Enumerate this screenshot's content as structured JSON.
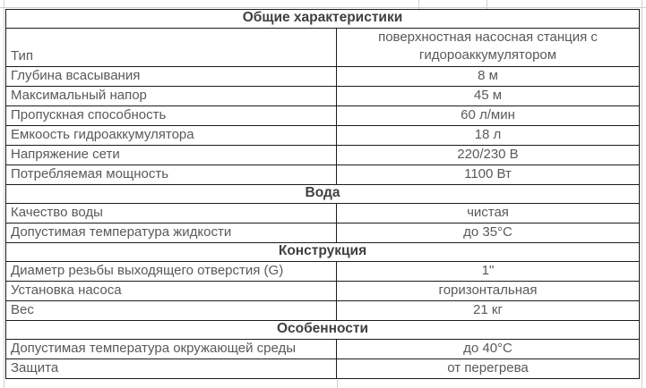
{
  "spec_table": {
    "sections": [
      {
        "header": "Общие характеристики",
        "rows": [
          {
            "label": "Тип",
            "value": "поверхностная насосная станция с гидороаккумулятором",
            "tall": true
          },
          {
            "label": "Глубина всасывания",
            "value": "8 м"
          },
          {
            "label": "Максимальный напор",
            "value": "45 м"
          },
          {
            "label": "Пропускная способность",
            "value": "60 л/мин"
          },
          {
            "label": "Емкоость гидроаккумулятора",
            "value": "18 л"
          },
          {
            "label": "Напряжение сети",
            "value": "220/230 В"
          },
          {
            "label": "Потребляемая мощность",
            "value": "1100 Вт"
          }
        ]
      },
      {
        "header": "Вода",
        "rows": [
          {
            "label": "Качество воды",
            "value": "чистая"
          },
          {
            "label": "Допустимая температура жидкости",
            "value": "до 35°C"
          }
        ]
      },
      {
        "header": "Конструкция",
        "rows": [
          {
            "label": "Диаметр резьбы выходящего отверстия (G)",
            "value": "1\""
          },
          {
            "label": "Установка насоса",
            "value": "горизонтальная"
          },
          {
            "label": "Вес",
            "value": "21 кг"
          }
        ]
      },
      {
        "header": "Особенности",
        "rows": [
          {
            "label": "Допустимая температура окружающей среды",
            "value": "до 40°C"
          },
          {
            "label": "Защита",
            "value": "от перегрева"
          }
        ]
      }
    ]
  },
  "colors": {
    "table_border": "#1b1b1b",
    "body_text": "#595959",
    "header_text": "#404040",
    "gridline": "#cfcfcf",
    "background": "#ffffff"
  }
}
